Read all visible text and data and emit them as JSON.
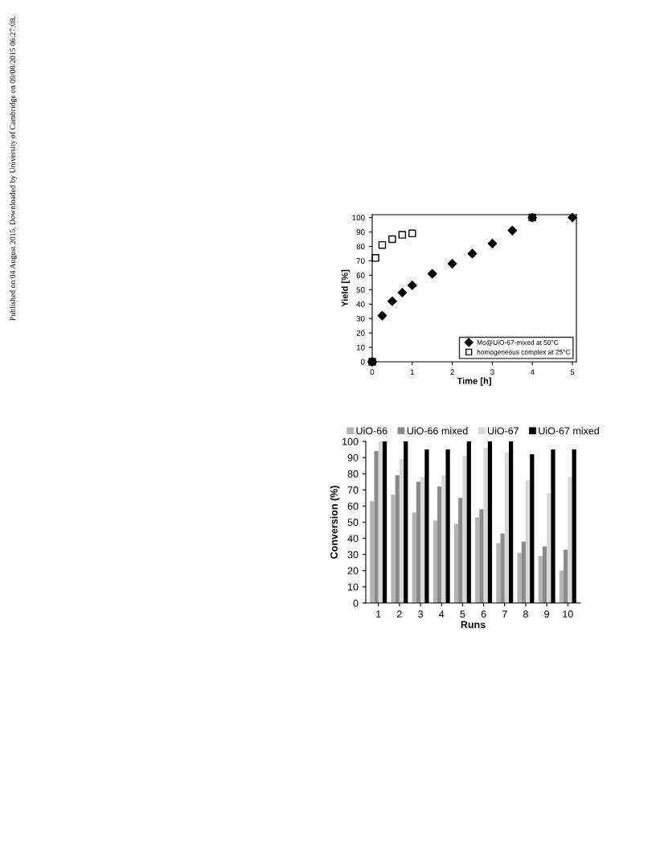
{
  "chart_data": [
    {
      "type": "scatter",
      "xlabel": "Time [h]",
      "ylabel": "Yield [%]",
      "xlim": [
        0,
        5.1
      ],
      "ylim": [
        0,
        102
      ],
      "xticks": [
        0,
        1,
        2,
        3,
        4,
        5
      ],
      "yticks": [
        0,
        10,
        20,
        30,
        40,
        50,
        60,
        70,
        80,
        90,
        100
      ],
      "grid": false,
      "legend": "bottom right",
      "annotations": [
        "Published on 04 August 2015. Downloaded by University of Cambridge on 09/08/2015 06:27:08."
      ],
      "series": [
        {
          "name": "Mo@UiO-67-mixed at 50°C",
          "color": "#000000",
          "marker": "diamond",
          "x": [
            0,
            0.25,
            0.5,
            0.75,
            1,
            1.5,
            2,
            2.5,
            3,
            3.5,
            4,
            5
          ],
          "values": [
            0,
            32,
            42,
            48,
            53,
            61,
            68,
            75,
            82,
            91,
            100,
            100
          ]
        },
        {
          "name": "homogeneous complex at 25°C",
          "color": "#000000",
          "marker": "square",
          "x": [
            0,
            0.083,
            0.25,
            0.5,
            0.75,
            1,
            4
          ],
          "values": [
            0,
            72,
            81,
            85,
            88,
            89,
            100
          ]
        }
      ]
    },
    {
      "type": "bar",
      "xlabel": "Runs",
      "ylabel": "Conversion (%)",
      "ylim": [
        0,
        100
      ],
      "yticks": [
        0,
        10,
        20,
        30,
        40,
        50,
        60,
        70,
        80,
        90,
        100
      ],
      "grid": false,
      "legend": "top",
      "categories": [
        "1",
        "2",
        "3",
        "4",
        "5",
        "6",
        "7",
        "8",
        "9",
        "10"
      ],
      "series": [
        {
          "name": "UiO-66",
          "color": "#b4b4b4",
          "values": [
            63,
            67,
            56,
            51,
            49,
            53,
            37,
            31,
            29,
            20
          ]
        },
        {
          "name": "UiO-66 mixed",
          "color": "#8a8a8a",
          "values": [
            94,
            79,
            75,
            72,
            65,
            58,
            43,
            38,
            35,
            33
          ]
        },
        {
          "name": "UiO-67",
          "color": "#d8d8d8",
          "values": [
            100,
            89,
            78,
            79,
            91,
            96,
            93,
            76,
            68,
            78
          ]
        },
        {
          "name": "UiO-67 mixed",
          "color": "#000000",
          "values": [
            100,
            100,
            95,
            95,
            100,
            100,
            100,
            92,
            95,
            95
          ]
        }
      ]
    }
  ]
}
